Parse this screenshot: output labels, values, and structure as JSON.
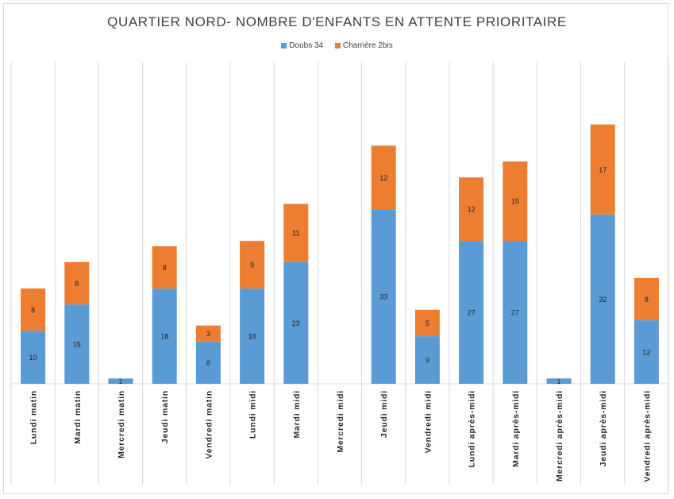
{
  "chart_data": {
    "type": "bar",
    "stacked": true,
    "title": "QUARTIER NORD- NOMBRE D'ENFANTS EN ATTENTE PRIORITAIRE",
    "categories": [
      "Lundi matin",
      "Mardi matin",
      "Mercredi matin",
      "Jeudi matin",
      "Vendredi matin",
      "Lundi midi",
      "Mardi midi",
      "Mercredi midi",
      "Jeudi midi",
      "Vendredi midi",
      "Lundi après-midi",
      "Mardi après-midi",
      "Mercredi après-midi",
      "Jeudi après-midi",
      "Vendredi après-midi"
    ],
    "series": [
      {
        "name": "Doubs 34",
        "color": "#5b9bd5",
        "values": [
          10,
          15,
          1,
          18,
          8,
          18,
          23,
          0,
          33,
          9,
          27,
          27,
          1,
          32,
          12
        ]
      },
      {
        "name": "Charrière 2bis",
        "color": "#ed7d31",
        "values": [
          8,
          8,
          0,
          8,
          3,
          9,
          11,
          0,
          12,
          5,
          12,
          15,
          0,
          17,
          8
        ]
      }
    ],
    "ylim": [
      0,
      50
    ],
    "grid": "vertical-category-lines",
    "legend": "top-center"
  }
}
